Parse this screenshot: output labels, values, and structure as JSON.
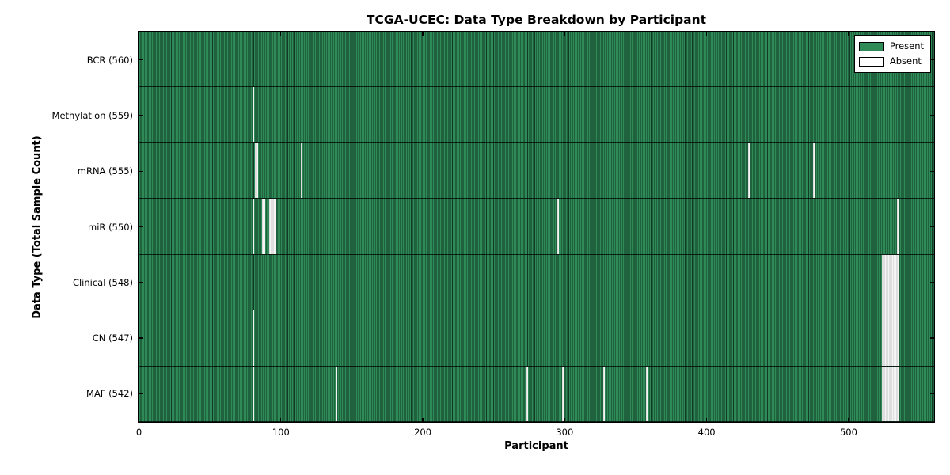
{
  "title": "TCGA-UCEC: Data Type Breakdown by Participant",
  "axes": {
    "xlabel": "Participant",
    "ylabel": "Data Type (Total Sample Count)",
    "x_tick_labels": [
      "0",
      "100",
      "200",
      "300",
      "400",
      "500"
    ],
    "x_tick_values": [
      0,
      100,
      200,
      300,
      400,
      500
    ]
  },
  "legend": {
    "present_label": "Present",
    "absent_label": "Absent"
  },
  "colors": {
    "present": "#2e8b57",
    "present_edge": "#123a26",
    "absent": "#f4f4f4",
    "absent_edge": "#c9c9c9",
    "axis": "#000000"
  },
  "chart_data": {
    "type": "heatmap",
    "title": "TCGA-UCEC: Data Type Breakdown by Participant",
    "xlabel": "Participant",
    "ylabel": "Data Type (Total Sample Count)",
    "x_range": [
      0,
      560
    ],
    "n_participants": 560,
    "cell_states": [
      "Present",
      "Absent"
    ],
    "legend_position": "upper right",
    "grid": false,
    "rows": [
      {
        "name": "BCR",
        "label": "BCR (560)",
        "present_count": 560,
        "absent_participants": []
      },
      {
        "name": "Methylation",
        "label": "Methylation (559)",
        "present_count": 559,
        "absent_participants": [
          80
        ]
      },
      {
        "name": "mRNA",
        "label": "mRNA (555)",
        "present_count": 555,
        "absent_participants": [
          82,
          83,
          114,
          429,
          475
        ]
      },
      {
        "name": "miR",
        "label": "miR (550)",
        "present_count": 550,
        "absent_participants": [
          80,
          87,
          88,
          92,
          93,
          94,
          95,
          96,
          295,
          534
        ]
      },
      {
        "name": "Clinical",
        "label": "Clinical (548)",
        "present_count": 548,
        "absent_participants": [
          523,
          524,
          525,
          526,
          527,
          528,
          529,
          530,
          531,
          532,
          533,
          534
        ]
      },
      {
        "name": "CN",
        "label": "CN (547)",
        "present_count": 547,
        "absent_participants": [
          80,
          523,
          524,
          525,
          526,
          527,
          528,
          529,
          530,
          531,
          532,
          533,
          534
        ]
      },
      {
        "name": "MAF",
        "label": "MAF (542)",
        "present_count": 542,
        "absent_participants": [
          80,
          139,
          273,
          298,
          327,
          357,
          523,
          524,
          525,
          526,
          527,
          528,
          529,
          530,
          531,
          532,
          533,
          534
        ]
      }
    ]
  }
}
